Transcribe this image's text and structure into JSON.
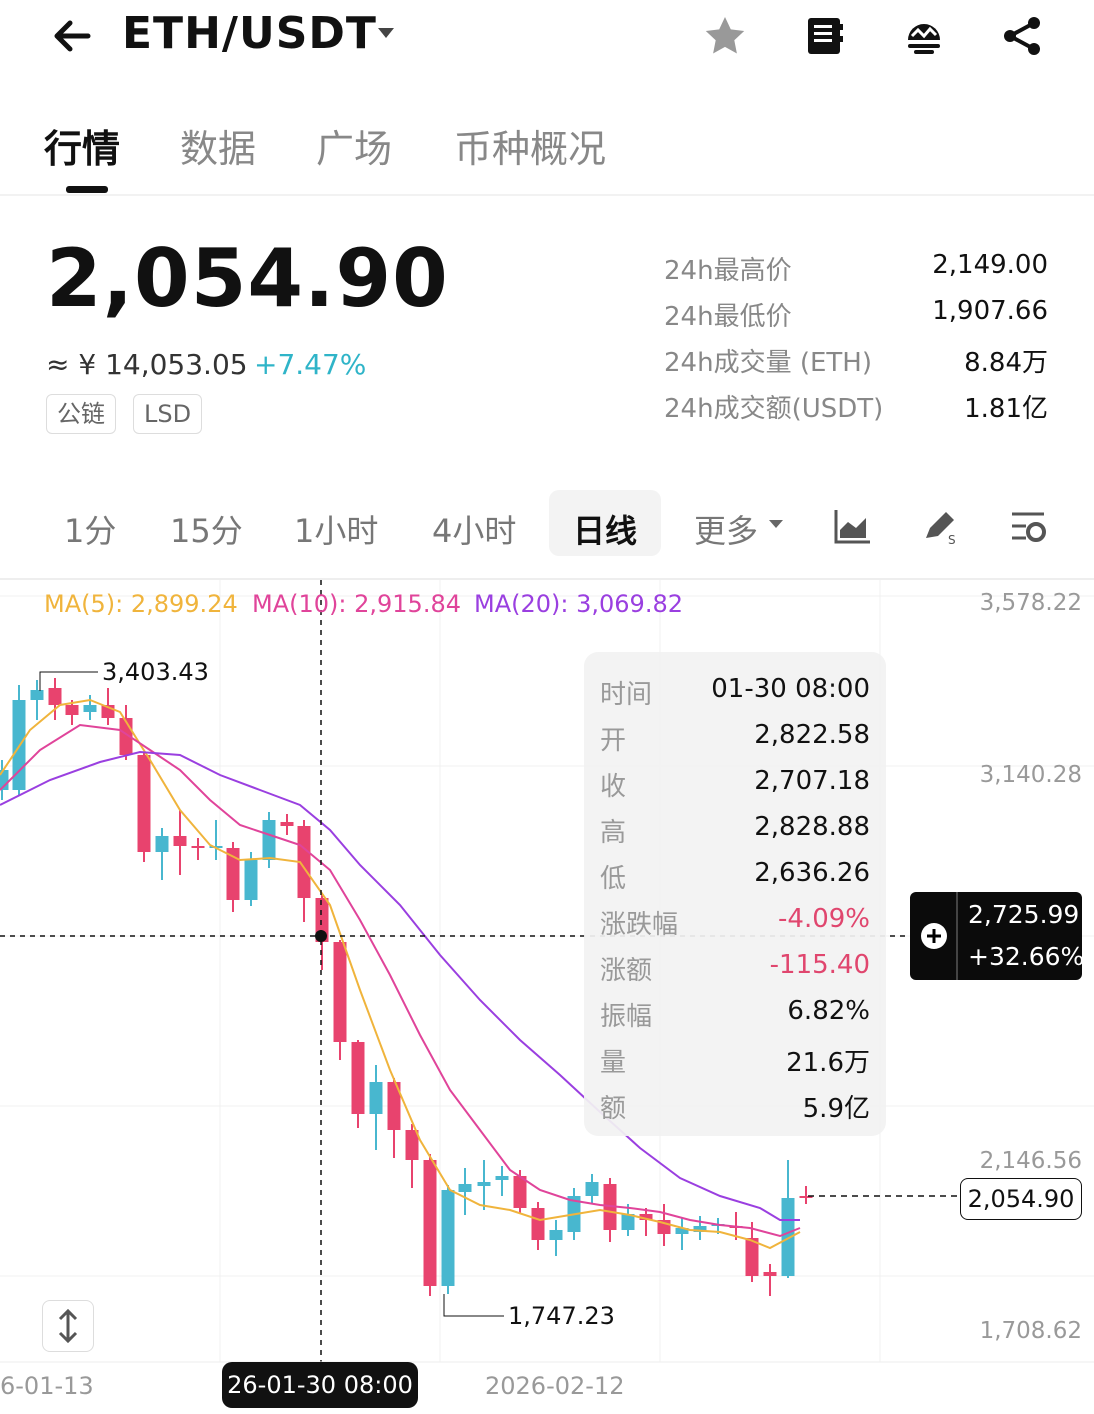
{
  "header": {
    "pair": "ETH/USDT",
    "icons": [
      "back-arrow-icon",
      "caret-down-icon",
      "star-icon",
      "notebook-icon",
      "bot-icon",
      "share-icon"
    ]
  },
  "tabs": [
    {
      "label": "行情",
      "active": true
    },
    {
      "label": "数据"
    },
    {
      "label": "广场"
    },
    {
      "label": "币种概况"
    }
  ],
  "price": {
    "last": "2,054.90",
    "approx_cny": "≈ ¥ 14,053.05",
    "change_pct": "+7.47%",
    "tags": [
      "公链",
      "LSD"
    ]
  },
  "stats": [
    {
      "label": "24h最高价",
      "value": "2,149.00"
    },
    {
      "label": "24h最低价",
      "value": "1,907.66"
    },
    {
      "label": "24h成交量 (ETH)",
      "value": "8.84万"
    },
    {
      "label": "24h成交额(USDT)",
      "value": "1.81亿"
    }
  ],
  "intervals": [
    "1分",
    "15分",
    "1小时",
    "4小时",
    "日线",
    "更多"
  ],
  "active_interval": "日线",
  "toolbar_icons": [
    "chart-type-icon",
    "draw-icon",
    "indicator-settings-icon"
  ],
  "ma": {
    "ma5": "MA(5): 2,899.24",
    "ma10": "MA(10): 2,915.84",
    "ma20": "MA(20): 3,069.82"
  },
  "colors": {
    "up": "#48b7cf",
    "down": "#e8436e",
    "ma5": "#f0b43c",
    "ma10": "#e0449a",
    "ma20": "#9a3fe0",
    "accent_change": "#2fb4c8"
  },
  "chart_data": {
    "type": "candlestick",
    "y_axis_labels": [
      "3,578.22",
      "3,140.28",
      "2,146.56",
      "1,708.62"
    ],
    "x_axis_labels": [
      "6-01-13",
      "2026-02-12"
    ],
    "selected_x_label": "26-01-30 08:00",
    "annotations": {
      "high": "3,403.43",
      "low": "1,747.23"
    },
    "last_price_label": "2,054.90",
    "crosshair": {
      "value": "2,725.99",
      "pct": "+32.66%"
    }
  },
  "tooltip": [
    {
      "label": "时间",
      "value": "01-30 08:00"
    },
    {
      "label": "开",
      "value": "2,822.58"
    },
    {
      "label": "收",
      "value": "2,707.18"
    },
    {
      "label": "高",
      "value": "2,828.88"
    },
    {
      "label": "低",
      "value": "2,636.26"
    },
    {
      "label": "涨跌幅",
      "value": "-4.09%",
      "color": "red"
    },
    {
      "label": "涨额",
      "value": "-115.40",
      "color": "red"
    },
    {
      "label": "振幅",
      "value": "6.82%"
    },
    {
      "label": "量",
      "value": "21.6万"
    },
    {
      "label": "额",
      "value": "5.9亿"
    }
  ]
}
